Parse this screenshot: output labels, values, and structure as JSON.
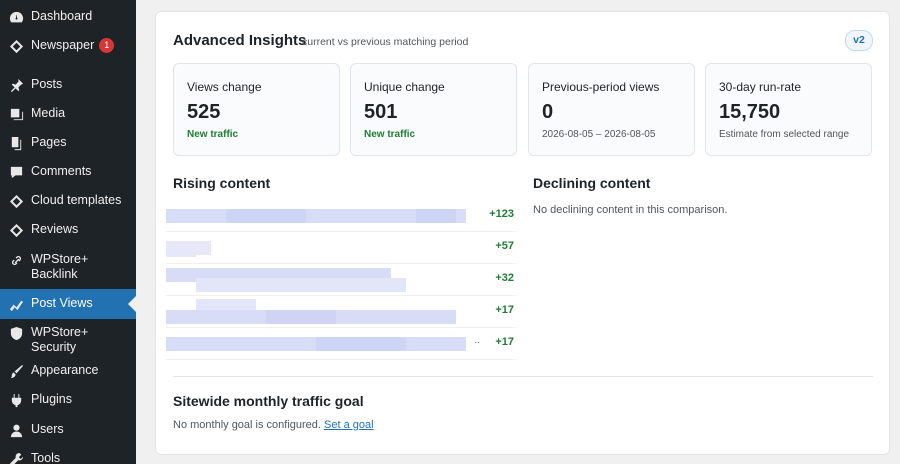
{
  "sidebar": {
    "items": [
      {
        "label": "Dashboard",
        "icon": "dashboard-icon"
      },
      {
        "label": "Newspaper",
        "icon": "newspaper-icon",
        "badge": "1"
      },
      {
        "label": "Posts",
        "icon": "pin-icon"
      },
      {
        "label": "Media",
        "icon": "media-icon"
      },
      {
        "label": "Pages",
        "icon": "pages-icon"
      },
      {
        "label": "Comments",
        "icon": "comment-icon"
      },
      {
        "label": "Cloud templates",
        "icon": "cloud-template-icon"
      },
      {
        "label": "Reviews",
        "icon": "reviews-icon"
      },
      {
        "label": "WPStore+\nBacklink",
        "icon": "link-icon"
      },
      {
        "label": "Post Views",
        "icon": "chart-line-icon",
        "active": true
      },
      {
        "label": "WPStore+ Security",
        "icon": "shield-icon"
      },
      {
        "label": "Appearance",
        "icon": "brush-icon"
      },
      {
        "label": "Plugins",
        "icon": "plugin-icon"
      },
      {
        "label": "Users",
        "icon": "user-icon"
      },
      {
        "label": "Tools",
        "icon": "tools-icon"
      }
    ]
  },
  "header": {
    "title": "Advanced Insights",
    "subtitle": "current vs previous matching period",
    "version": "v2"
  },
  "stats": [
    {
      "label": "Views change",
      "value": "525",
      "note": "New traffic",
      "note_style": "green"
    },
    {
      "label": "Unique change",
      "value": "501",
      "note": "New traffic",
      "note_style": "green"
    },
    {
      "label": "Previous-period views",
      "value": "0",
      "note": "2026-08-05 – 2026-08-05",
      "note_style": "muted"
    },
    {
      "label": "30-day run-rate",
      "value": "15,750",
      "note": "Estimate from selected range",
      "note_style": "muted"
    }
  ],
  "rising": {
    "title": "Rising content",
    "rows": [
      {
        "value": "+123",
        "ellipsis": ""
      },
      {
        "value": "+57",
        "ellipsis": ""
      },
      {
        "value": "+32",
        "ellipsis": ""
      },
      {
        "value": "+17",
        "ellipsis": ""
      },
      {
        "value": "+17",
        "ellipsis": ".."
      }
    ]
  },
  "declining": {
    "title": "Declining content",
    "empty_text": "No declining content in this comparison."
  },
  "goal": {
    "title": "Sitewide monthly traffic goal",
    "text": "No monthly goal is configured.",
    "link": "Set a goal"
  },
  "colors": {
    "sidebar_bg": "#1d2327",
    "active_bg": "#2271b1",
    "positive": "#1e7e34",
    "link": "#2271b1"
  }
}
